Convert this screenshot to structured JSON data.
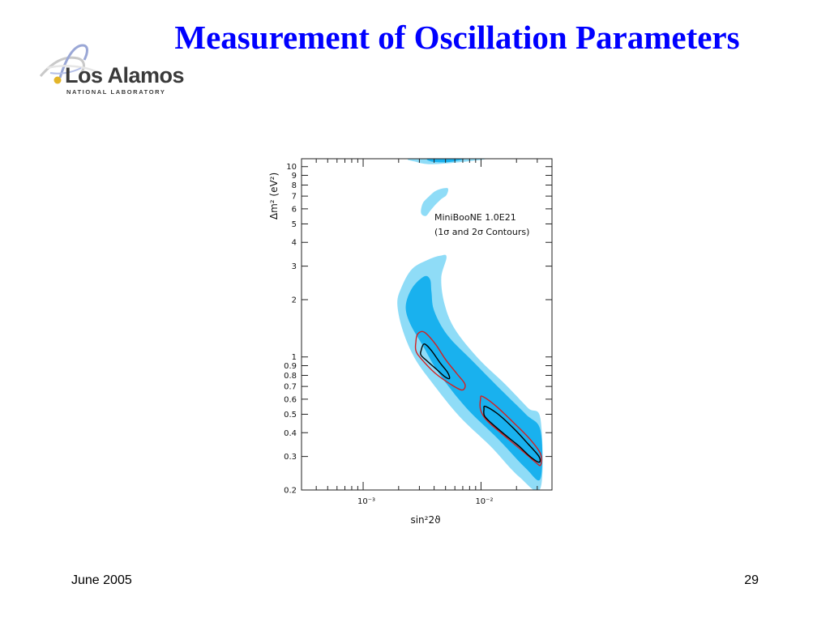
{
  "slide": {
    "title": "Measurement of Oscillation Parameters",
    "date": "June 2005",
    "page_number": "29"
  },
  "logo": {
    "name": "Los Alamos",
    "subtitle": "NATIONAL LABORATORY",
    "icon": "los-alamos-swoosh-logo"
  },
  "chart_data": {
    "type": "contour",
    "xlabel": "sin²2ϑ",
    "ylabel": "Δm² (eV²)",
    "x_scale": "log",
    "y_scale": "log",
    "xlim": [
      0.0003,
      0.04
    ],
    "ylim": [
      0.2,
      11
    ],
    "x_ticks": [
      {
        "value": 0.001,
        "label": "10⁻³"
      },
      {
        "value": 0.01,
        "label": "10⁻²"
      }
    ],
    "y_ticks": [
      {
        "value": 10,
        "label": "10"
      },
      {
        "value": 9,
        "label": "9"
      },
      {
        "value": 8,
        "label": "8"
      },
      {
        "value": 7,
        "label": "7"
      },
      {
        "value": 6,
        "label": "6"
      },
      {
        "value": 5,
        "label": "5"
      },
      {
        "value": 4,
        "label": "4"
      },
      {
        "value": 3,
        "label": "3"
      },
      {
        "value": 2,
        "label": "2"
      },
      {
        "value": 1,
        "label": "1"
      },
      {
        "value": 0.9,
        "label": "0.9"
      },
      {
        "value": 0.8,
        "label": "0.8"
      },
      {
        "value": 0.7,
        "label": "0.7"
      },
      {
        "value": 0.6,
        "label": "0.6"
      },
      {
        "value": 0.5,
        "label": "0.5"
      },
      {
        "value": 0.4,
        "label": "0.4"
      },
      {
        "value": 0.3,
        "label": "0.3"
      },
      {
        "value": 0.2,
        "label": "0.2"
      }
    ],
    "annotation_lines": [
      "MiniBooNE 1.0E21",
      "(1σ and 2σ Contours)"
    ],
    "colors": {
      "light_region": "#8fdcf7",
      "dark_region": "#19b1ee",
      "sigma1": "#000000",
      "sigma2": "#d61e1e"
    },
    "series": [
      {
        "name": "Lower Δm² band (outer region)",
        "role": "light",
        "points": [
          [
            0.00195,
            1.9
          ],
          [
            0.0021,
            2.3
          ],
          [
            0.0026,
            2.9
          ],
          [
            0.0036,
            3.25
          ],
          [
            0.0045,
            3.4
          ],
          [
            0.0051,
            3.35
          ],
          [
            0.0046,
            2.6
          ],
          [
            0.0049,
            1.9
          ],
          [
            0.006,
            1.4
          ],
          [
            0.0095,
            0.98
          ],
          [
            0.016,
            0.72
          ],
          [
            0.025,
            0.54
          ],
          [
            0.032,
            0.47
          ],
          [
            0.032,
            0.205
          ],
          [
            0.021,
            0.235
          ],
          [
            0.012,
            0.34
          ],
          [
            0.0065,
            0.49
          ],
          [
            0.0038,
            0.74
          ],
          [
            0.0027,
            1.0
          ],
          [
            0.00215,
            1.4
          ]
        ]
      },
      {
        "name": "Lower Δm² band (inner region)",
        "role": "dark",
        "points": [
          [
            0.0023,
            1.85
          ],
          [
            0.0026,
            2.3
          ],
          [
            0.0033,
            2.65
          ],
          [
            0.0037,
            2.55
          ],
          [
            0.0038,
            2.2
          ],
          [
            0.004,
            1.75
          ],
          [
            0.0052,
            1.3
          ],
          [
            0.0085,
            0.95
          ],
          [
            0.0145,
            0.68
          ],
          [
            0.024,
            0.5
          ],
          [
            0.032,
            0.41
          ],
          [
            0.032,
            0.23
          ],
          [
            0.024,
            0.26
          ],
          [
            0.014,
            0.37
          ],
          [
            0.0075,
            0.54
          ],
          [
            0.0044,
            0.82
          ],
          [
            0.0032,
            1.15
          ],
          [
            0.0025,
            1.5
          ]
        ]
      },
      {
        "name": "Upper island",
        "role": "light",
        "points": [
          [
            0.0031,
            5.7
          ],
          [
            0.0032,
            6.4
          ],
          [
            0.0036,
            6.95
          ],
          [
            0.0042,
            7.5
          ],
          [
            0.0052,
            7.7
          ],
          [
            0.0051,
            7.1
          ],
          [
            0.0046,
            6.75
          ],
          [
            0.0041,
            6.3
          ],
          [
            0.0037,
            5.85
          ],
          [
            0.0034,
            5.5
          ]
        ]
      },
      {
        "name": "Top band (outer)",
        "role": "light",
        "points": [
          [
            0.0026,
            11.0
          ],
          [
            0.0028,
            10.6
          ],
          [
            0.0036,
            10.3
          ],
          [
            0.0056,
            10.45
          ],
          [
            0.0088,
            10.75
          ],
          [
            0.01,
            11.0
          ]
        ]
      },
      {
        "name": "Top band (inner)",
        "role": "dark",
        "points": [
          [
            0.0036,
            11.0
          ],
          [
            0.0039,
            10.6
          ],
          [
            0.0052,
            10.55
          ],
          [
            0.0063,
            10.75
          ],
          [
            0.007,
            11.0
          ]
        ]
      },
      {
        "name": "2σ contour (upper)",
        "role": "sigma2",
        "points": [
          [
            0.0028,
            1.2
          ],
          [
            0.0029,
            1.32
          ],
          [
            0.0033,
            1.35
          ],
          [
            0.0041,
            1.17
          ],
          [
            0.005,
            0.97
          ],
          [
            0.0062,
            0.82
          ],
          [
            0.0073,
            0.72
          ],
          [
            0.0069,
            0.67
          ],
          [
            0.0055,
            0.72
          ],
          [
            0.0041,
            0.82
          ],
          [
            0.0031,
            0.98
          ],
          [
            0.0028,
            1.08
          ]
        ]
      },
      {
        "name": "1σ contour (upper)",
        "role": "sigma1",
        "points": [
          [
            0.0031,
            1.08
          ],
          [
            0.0033,
            1.17
          ],
          [
            0.0038,
            1.08
          ],
          [
            0.0045,
            0.93
          ],
          [
            0.0052,
            0.83
          ],
          [
            0.0054,
            0.77
          ],
          [
            0.0049,
            0.79
          ],
          [
            0.0042,
            0.86
          ],
          [
            0.0035,
            0.95
          ],
          [
            0.0031,
            1.02
          ]
        ]
      },
      {
        "name": "2σ contour (lower)",
        "role": "sigma2",
        "points": [
          [
            0.0099,
            0.6
          ],
          [
            0.0103,
            0.62
          ],
          [
            0.0135,
            0.55
          ],
          [
            0.019,
            0.45
          ],
          [
            0.026,
            0.37
          ],
          [
            0.032,
            0.31
          ],
          [
            0.032,
            0.27
          ],
          [
            0.029,
            0.28
          ],
          [
            0.024,
            0.31
          ],
          [
            0.019,
            0.35
          ],
          [
            0.014,
            0.41
          ],
          [
            0.011,
            0.47
          ],
          [
            0.0099,
            0.53
          ]
        ]
      },
      {
        "name": "1σ contour (lower)",
        "role": "sigma1",
        "points": [
          [
            0.0106,
            0.53
          ],
          [
            0.0109,
            0.55
          ],
          [
            0.014,
            0.5
          ],
          [
            0.019,
            0.42
          ],
          [
            0.025,
            0.35
          ],
          [
            0.031,
            0.3
          ],
          [
            0.031,
            0.28
          ],
          [
            0.026,
            0.3
          ],
          [
            0.021,
            0.34
          ],
          [
            0.016,
            0.39
          ],
          [
            0.0122,
            0.45
          ],
          [
            0.0107,
            0.49
          ]
        ]
      }
    ]
  }
}
